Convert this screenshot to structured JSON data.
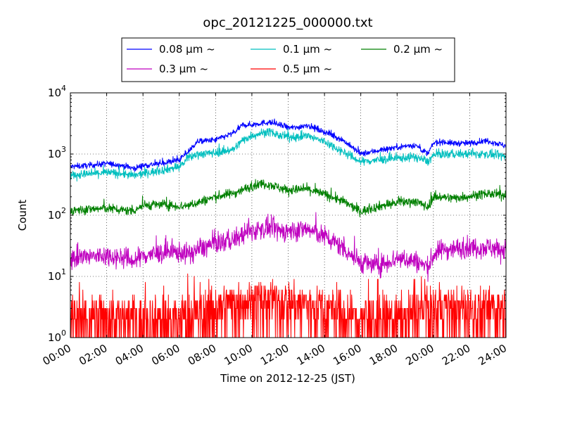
{
  "chart_data": {
    "type": "line",
    "title": "opc_20121225_000000.txt",
    "xlabel": "Time on 2012-12-25 (JST)",
    "ylabel": "Count",
    "x_ticks": [
      "00:00",
      "02:00",
      "04:00",
      "06:00",
      "08:00",
      "10:00",
      "12:00",
      "14:00",
      "16:00",
      "18:00",
      "20:00",
      "22:00",
      "24:00"
    ],
    "xlim_hours": [
      0,
      24
    ],
    "ylim": [
      1,
      10000
    ],
    "y_scale": "log",
    "y_ticks": [
      {
        "base": "10",
        "exp": "0"
      },
      {
        "base": "10",
        "exp": "1"
      },
      {
        "base": "10",
        "exp": "2"
      },
      {
        "base": "10",
        "exp": "3"
      },
      {
        "base": "10",
        "exp": "4"
      }
    ],
    "grid": true,
    "legend_position": "top",
    "series": [
      {
        "name": "0.08 μm ~",
        "color": "#0000ff",
        "noise": 0.035,
        "x_hours": [
          0,
          1,
          2,
          3,
          3.5,
          4,
          5,
          6,
          6.5,
          7,
          8,
          9,
          9.5,
          10,
          10.5,
          11,
          11.5,
          12,
          12.5,
          13,
          14,
          15,
          15.5,
          16,
          17,
          18,
          19,
          19.7,
          20,
          20.5,
          21,
          22,
          22.5,
          23,
          24
        ],
        "values": [
          620,
          650,
          700,
          640,
          580,
          650,
          700,
          800,
          1100,
          1600,
          1700,
          2200,
          3000,
          3000,
          3200,
          3300,
          3000,
          2700,
          2700,
          3000,
          2300,
          1700,
          1300,
          1000,
          1150,
          1300,
          1400,
          1000,
          1500,
          1600,
          1500,
          1500,
          1600,
          1650,
          1350
        ]
      },
      {
        "name": "0.1 μm ~",
        "color": "#00bfbf",
        "noise": 0.05,
        "x_hours": [
          0,
          1,
          2,
          3,
          3.5,
          4,
          5,
          6,
          6.5,
          7,
          8,
          9,
          9.5,
          10,
          10.5,
          11,
          11.5,
          12,
          12.5,
          13,
          14,
          15,
          15.5,
          16,
          17,
          18,
          19,
          19.7,
          20,
          20.5,
          21,
          22,
          22.5,
          23,
          24
        ],
        "values": [
          450,
          470,
          500,
          470,
          440,
          480,
          540,
          620,
          850,
          1000,
          1050,
          1200,
          1700,
          2000,
          2200,
          2300,
          2000,
          1900,
          1900,
          2000,
          1600,
          1100,
          900,
          750,
          800,
          850,
          900,
          750,
          950,
          1000,
          1000,
          1000,
          1000,
          1000,
          900
        ]
      },
      {
        "name": "0.2 μm ~",
        "color": "#008000",
        "noise": 0.055,
        "x_hours": [
          0,
          1,
          2,
          3,
          3.5,
          4,
          5,
          6,
          6.5,
          7,
          8,
          9,
          9.5,
          10,
          10.5,
          11,
          11.5,
          12,
          12.5,
          13,
          14,
          15,
          15.5,
          16,
          17,
          18,
          19,
          19.7,
          20,
          20.5,
          21,
          22,
          22.5,
          23,
          24
        ],
        "values": [
          120,
          125,
          130,
          120,
          120,
          145,
          150,
          140,
          145,
          160,
          200,
          230,
          260,
          300,
          330,
          320,
          280,
          260,
          260,
          270,
          220,
          170,
          140,
          115,
          140,
          160,
          170,
          135,
          200,
          200,
          190,
          205,
          215,
          225,
          210
        ]
      },
      {
        "name": "0.3 μm ~",
        "color": "#bf00bf",
        "noise": 0.12,
        "x_hours": [
          0,
          1,
          2,
          3,
          3.5,
          4,
          5,
          6,
          6.5,
          7,
          8,
          9,
          9.5,
          10,
          10.5,
          11,
          11.5,
          12,
          12.5,
          13,
          14,
          15,
          15.5,
          16,
          17,
          18,
          19,
          19.7,
          20,
          20.5,
          21,
          22,
          22.5,
          23,
          24
        ],
        "values": [
          20,
          21,
          22,
          20,
          18,
          22,
          24,
          25,
          23,
          27,
          35,
          40,
          48,
          55,
          60,
          62,
          55,
          55,
          57,
          60,
          45,
          30,
          22,
          17,
          15,
          20,
          18,
          14,
          22,
          28,
          28,
          30,
          30,
          30,
          27
        ]
      },
      {
        "name": "0.5 μm ~",
        "color": "#ff0000",
        "noise": 0,
        "x_hours": [
          0,
          6,
          8,
          9,
          12,
          14,
          16,
          18,
          20,
          24
        ],
        "values": [
          2,
          2,
          3,
          4,
          4,
          3,
          2,
          2,
          3,
          3
        ]
      }
    ]
  }
}
